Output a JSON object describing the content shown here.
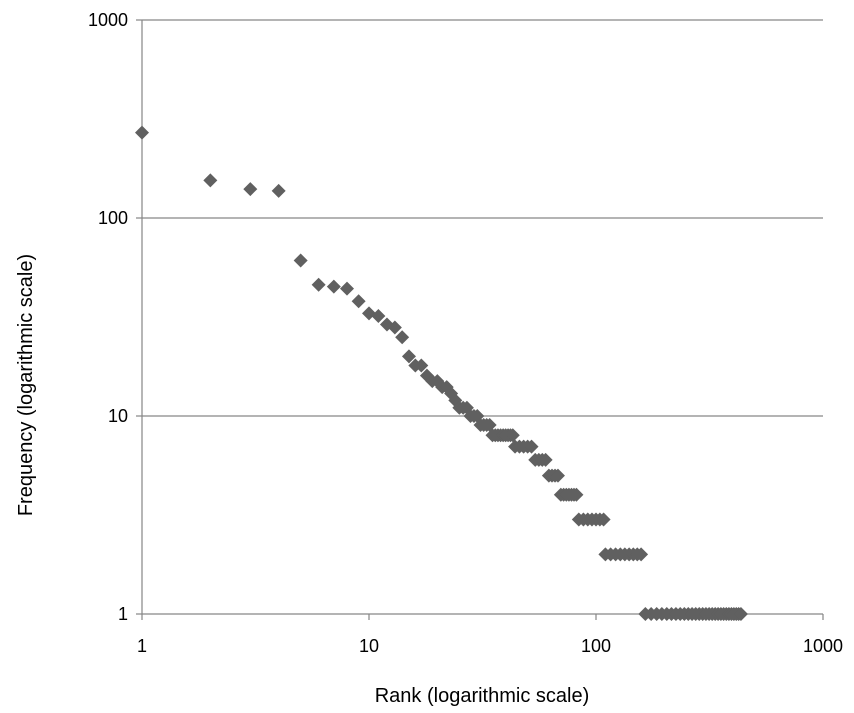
{
  "chart_data": {
    "type": "scatter",
    "title": "",
    "xlabel": "Rank (logarithmic scale)",
    "ylabel": "Frequency (logarithmic scale)",
    "x_scale": "log",
    "y_scale": "log",
    "xlim": [
      1,
      1000
    ],
    "ylim": [
      1,
      1000
    ],
    "x_ticks": [
      "1",
      "10",
      "100",
      "1000"
    ],
    "y_ticks": [
      "1",
      "10",
      "100",
      "1000"
    ],
    "grid": "horizontal",
    "legend": "none",
    "marker": "diamond",
    "colors": {
      "marker": "#606060",
      "grid": "#868686",
      "axis": "#868686"
    },
    "series": [
      {
        "points": [
          [
            1,
            270
          ],
          [
            2,
            155
          ],
          [
            3,
            140
          ],
          [
            4,
            137
          ],
          [
            5,
            61
          ],
          [
            6,
            46
          ],
          [
            7,
            45
          ],
          [
            8,
            44
          ],
          [
            9,
            38
          ],
          [
            10,
            33
          ],
          [
            11,
            32
          ],
          [
            12,
            29
          ],
          [
            13,
            28
          ],
          [
            14,
            25
          ],
          [
            15,
            20
          ],
          [
            16,
            18
          ],
          [
            17,
            18
          ],
          [
            18,
            16
          ],
          [
            19,
            15
          ],
          [
            20,
            15
          ],
          [
            21,
            14
          ],
          [
            22,
            14
          ],
          [
            23,
            13
          ],
          [
            24,
            12
          ],
          [
            25,
            11
          ],
          [
            26,
            11
          ],
          [
            27,
            11
          ],
          [
            28,
            10
          ],
          [
            29,
            10
          ],
          [
            30,
            10
          ],
          [
            31,
            9
          ],
          [
            32,
            9
          ],
          [
            33,
            9
          ],
          [
            34,
            9
          ],
          [
            35,
            8
          ],
          [
            36,
            8
          ],
          [
            37,
            8
          ],
          [
            38,
            8
          ],
          [
            39,
            8
          ],
          [
            40,
            8
          ],
          [
            41,
            8
          ],
          [
            42,
            8
          ],
          [
            43,
            8
          ],
          [
            44,
            7
          ],
          [
            46,
            7
          ],
          [
            48,
            7
          ],
          [
            50,
            7
          ],
          [
            52,
            7
          ],
          [
            54,
            6
          ],
          [
            56,
            6
          ],
          [
            58,
            6
          ],
          [
            60,
            6
          ],
          [
            62,
            5
          ],
          [
            64,
            5
          ],
          [
            66,
            5
          ],
          [
            68,
            5
          ],
          [
            70,
            4
          ],
          [
            72,
            4
          ],
          [
            74,
            4
          ],
          [
            76,
            4
          ],
          [
            78,
            4
          ],
          [
            80,
            4
          ],
          [
            82,
            4
          ],
          [
            84,
            3
          ],
          [
            88,
            3
          ],
          [
            92,
            3
          ],
          [
            96,
            3
          ],
          [
            100,
            3
          ],
          [
            104,
            3
          ],
          [
            108,
            3
          ],
          [
            110,
            2
          ],
          [
            116,
            2
          ],
          [
            122,
            2
          ],
          [
            128,
            2
          ],
          [
            134,
            2
          ],
          [
            140,
            2
          ],
          [
            146,
            2
          ],
          [
            152,
            2
          ],
          [
            158,
            2
          ],
          [
            165,
            1
          ],
          [
            175,
            1
          ],
          [
            185,
            1
          ],
          [
            195,
            1
          ],
          [
            205,
            1
          ],
          [
            215,
            1
          ],
          [
            225,
            1
          ],
          [
            235,
            1
          ],
          [
            245,
            1
          ],
          [
            255,
            1
          ],
          [
            265,
            1
          ],
          [
            275,
            1
          ],
          [
            285,
            1
          ],
          [
            295,
            1
          ],
          [
            305,
            1
          ],
          [
            315,
            1
          ],
          [
            325,
            1
          ],
          [
            335,
            1
          ],
          [
            345,
            1
          ],
          [
            355,
            1
          ],
          [
            365,
            1
          ],
          [
            375,
            1
          ],
          [
            385,
            1
          ],
          [
            395,
            1
          ],
          [
            405,
            1
          ],
          [
            415,
            1
          ],
          [
            425,
            1
          ],
          [
            435,
            1
          ]
        ]
      }
    ]
  }
}
